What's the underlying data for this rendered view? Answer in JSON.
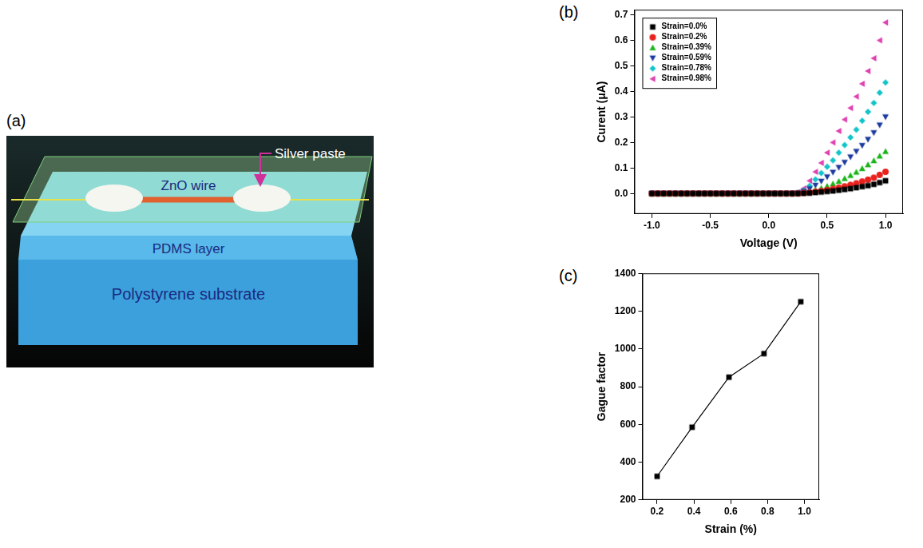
{
  "diagram": {
    "panel": "(a)",
    "labels": {
      "silver_paste": "Silver paste",
      "wire": "ZnO wire",
      "layer": "PDMS layer",
      "substrate": "Polystyrene substrate"
    }
  },
  "chart_data": [
    {
      "panel": "(b)",
      "type": "scatter",
      "x_label": "Voltage (V)",
      "y_label": "Curent (μA)",
      "x": [
        -1,
        -0.95,
        -0.9,
        -0.85,
        -0.8,
        -0.75,
        -0.7,
        -0.65,
        -0.6,
        -0.55,
        -0.5,
        -0.45,
        -0.4,
        -0.35,
        -0.3,
        -0.25,
        -0.2,
        -0.15,
        -0.1,
        -0.05,
        0,
        0.05,
        0.1,
        0.15,
        0.2,
        0.25,
        0.3,
        0.35,
        0.4,
        0.45,
        0.5,
        0.55,
        0.6,
        0.65,
        0.7,
        0.75,
        0.8,
        0.85,
        0.9,
        0.95,
        1
      ],
      "series": [
        {
          "name": "Strain=0.0%",
          "color": "#000000",
          "marker": "square",
          "values": [
            0,
            0,
            0,
            0,
            0,
            0,
            0,
            0,
            0,
            0,
            0,
            0,
            0,
            0,
            0,
            0,
            0,
            0,
            0,
            0,
            0,
            0,
            0,
            0,
            0,
            0,
            0.001,
            0.002,
            0.004,
            0.006,
            0.008,
            0.01,
            0.013,
            0.016,
            0.019,
            0.023,
            0.027,
            0.031,
            0.036,
            0.043,
            0.05
          ]
        },
        {
          "name": "Strain=0.2%",
          "color": "#e8211d",
          "marker": "circle",
          "values": [
            0,
            0,
            0,
            0,
            0,
            0,
            0,
            0,
            0,
            0,
            0,
            0,
            0,
            0,
            0,
            0,
            0,
            0,
            0,
            0,
            0,
            0,
            0,
            0,
            0,
            0,
            0.002,
            0.004,
            0.007,
            0.01,
            0.014,
            0.018,
            0.023,
            0.028,
            0.034,
            0.04,
            0.047,
            0.054,
            0.062,
            0.073,
            0.085
          ]
        },
        {
          "name": "Strain=0.39%",
          "color": "#18b418",
          "marker": "triangle",
          "values": [
            0,
            0,
            0,
            0,
            0,
            0,
            0,
            0,
            0,
            0,
            0,
            0,
            0,
            0,
            0,
            0,
            0,
            0,
            0,
            0,
            0,
            0,
            0,
            0,
            0,
            0.001,
            0.004,
            0.008,
            0.014,
            0.021,
            0.029,
            0.038,
            0.048,
            0.059,
            0.071,
            0.084,
            0.098,
            0.113,
            0.129,
            0.147,
            0.165
          ]
        },
        {
          "name": "Strain=0.59%",
          "color": "#1c3a9e",
          "marker": "triangle-down",
          "values": [
            0,
            0,
            0,
            0,
            0,
            0,
            0,
            0,
            0,
            0,
            0,
            0,
            0,
            0,
            0,
            0,
            0,
            0,
            0,
            0,
            0,
            0,
            0,
            0,
            0,
            0.002,
            0.008,
            0.018,
            0.032,
            0.048,
            0.065,
            0.083,
            0.102,
            0.122,
            0.143,
            0.165,
            0.188,
            0.212,
            0.238,
            0.268,
            0.3
          ]
        },
        {
          "name": "Strain=0.78%",
          "color": "#10c4c8",
          "marker": "diamond",
          "values": [
            0,
            0,
            0,
            0,
            0,
            0,
            0,
            0,
            0,
            0,
            0,
            0,
            0,
            0,
            0,
            0,
            0,
            0,
            0,
            0,
            0,
            0,
            0,
            0,
            0,
            0.003,
            0.012,
            0.03,
            0.055,
            0.08,
            0.105,
            0.13,
            0.16,
            0.19,
            0.22,
            0.25,
            0.285,
            0.32,
            0.355,
            0.395,
            0.435
          ]
        },
        {
          "name": "Strain=0.98%",
          "color": "#e040b0",
          "marker": "triangle-left",
          "values": [
            0,
            0,
            0,
            0,
            0,
            0,
            0,
            0,
            0,
            0,
            0,
            0,
            0,
            0,
            0,
            0,
            0,
            0,
            0,
            0,
            0,
            0,
            0,
            0,
            0,
            0.005,
            0.02,
            0.05,
            0.085,
            0.12,
            0.16,
            0.2,
            0.245,
            0.29,
            0.335,
            0.38,
            0.43,
            0.48,
            0.53,
            0.6,
            0.67
          ]
        }
      ],
      "xlim": [
        -1.15,
        1.15
      ],
      "xticks": [
        {
          "value": -1,
          "label": "-1.0"
        },
        {
          "value": -0.5,
          "label": "-0.5"
        },
        {
          "value": 0,
          "label": "0.0"
        },
        {
          "value": 0.5,
          "label": "0.5"
        },
        {
          "value": 1,
          "label": "1.0"
        }
      ],
      "ylim": [
        -0.08,
        0.72
      ],
      "yticks": [
        {
          "value": 0,
          "label": "0.0"
        },
        0.1,
        0.2,
        0.3,
        0.4,
        0.5,
        0.6,
        0.7
      ],
      "grid": false,
      "legend": "upper left"
    },
    {
      "panel": "(c)",
      "type": "line",
      "x_label": "Strain (%)",
      "y_label": "Gague factor",
      "x": [
        0.2,
        0.39,
        0.59,
        0.78,
        0.98
      ],
      "values": [
        325,
        585,
        850,
        975,
        1250
      ],
      "color": "#000000",
      "marker": "square",
      "xlim": [
        0.12,
        1.08
      ],
      "xticks": [
        0.2,
        0.4,
        0.6,
        0.8,
        {
          "value": 1,
          "label": "1.0"
        }
      ],
      "ylim": [
        200,
        1400
      ],
      "yticks": [
        200,
        400,
        600,
        800,
        1000,
        1200,
        1400
      ],
      "grid": false
    }
  ]
}
